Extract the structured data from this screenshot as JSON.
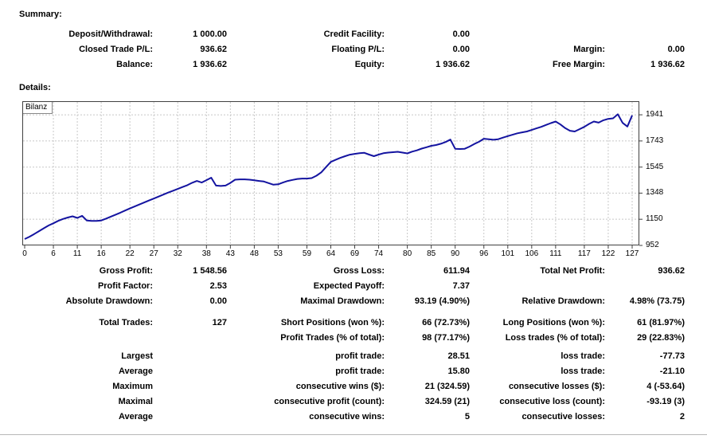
{
  "summary": {
    "title": "Summary:",
    "rows": [
      [
        "Deposit/Withdrawal:",
        "1 000.00",
        "Credit Facility:",
        "0.00",
        "",
        ""
      ],
      [
        "Closed Trade P/L:",
        "936.62",
        "Floating P/L:",
        "0.00",
        "Margin:",
        "0.00"
      ],
      [
        "Balance:",
        "1 936.62",
        "Equity:",
        "1 936.62",
        "Free Margin:",
        "1 936.62"
      ]
    ]
  },
  "details": {
    "title": "Details:"
  },
  "chart_data": {
    "type": "line",
    "title": "Bilanz",
    "xlabel": "",
    "ylabel": "",
    "legend_position": "top-left",
    "grid": true,
    "x_ticks": [
      0,
      6,
      11,
      16,
      22,
      27,
      32,
      38,
      43,
      48,
      53,
      59,
      64,
      69,
      74,
      80,
      85,
      90,
      96,
      101,
      106,
      111,
      117,
      122,
      127
    ],
    "y_ticks": [
      952,
      1150,
      1348,
      1545,
      1743,
      1941
    ],
    "xlim": [
      0,
      128
    ],
    "ylim": [
      952,
      2044
    ],
    "line_color": "#1414a0",
    "grid_color": "#c8c8c8",
    "border_color": "#404040",
    "series": [
      {
        "name": "Bilanz",
        "values": [
          1000,
          1018,
          1038,
          1060,
          1082,
          1103,
          1120,
          1138,
          1152,
          1163,
          1172,
          1160,
          1176,
          1140,
          1137,
          1137,
          1141,
          1155,
          1170,
          1185,
          1200,
          1216,
          1232,
          1247,
          1262,
          1277,
          1292,
          1307,
          1322,
          1337,
          1352,
          1366,
          1380,
          1394,
          1408,
          1426,
          1440,
          1428,
          1446,
          1465,
          1405,
          1402,
          1405,
          1425,
          1450,
          1452,
          1452,
          1450,
          1445,
          1440,
          1436,
          1424,
          1412,
          1415,
          1428,
          1440,
          1448,
          1455,
          1458,
          1458,
          1462,
          1480,
          1505,
          1545,
          1584,
          1600,
          1615,
          1628,
          1639,
          1645,
          1650,
          1653,
          1640,
          1628,
          1640,
          1650,
          1655,
          1658,
          1661,
          1655,
          1649,
          1662,
          1672,
          1685,
          1695,
          1706,
          1712,
          1722,
          1735,
          1753,
          1684,
          1682,
          1684,
          1700,
          1720,
          1737,
          1760,
          1756,
          1752,
          1756,
          1768,
          1780,
          1790,
          1801,
          1808,
          1815,
          1826,
          1838,
          1850,
          1864,
          1878,
          1890,
          1868,
          1840,
          1820,
          1815,
          1832,
          1850,
          1872,
          1890,
          1882,
          1900,
          1910,
          1914,
          1945,
          1880,
          1852,
          1936.62
        ]
      }
    ]
  },
  "stats": {
    "rows": [
      [
        "Gross Profit:",
        "1 548.56",
        "Gross Loss:",
        "611.94",
        "Total Net Profit:",
        "936.62"
      ],
      [
        "Profit Factor:",
        "2.53",
        "Expected Payoff:",
        "7.37",
        "",
        ""
      ],
      [
        "Absolute Drawdown:",
        "0.00",
        "Maximal Drawdown:",
        "93.19 (4.90%)",
        "Relative Drawdown:",
        "4.98% (73.75)"
      ],
      [
        "Total Trades:",
        "127",
        "Short Positions (won %):",
        "66 (72.73%)",
        "Long Positions (won %):",
        "61 (81.97%)"
      ],
      [
        "",
        "",
        "Profit Trades (% of total):",
        "98 (77.17%)",
        "Loss trades (% of total):",
        "29 (22.83%)"
      ],
      [
        "Largest",
        "",
        "profit trade:",
        "28.51",
        "loss trade:",
        "-77.73"
      ],
      [
        "Average",
        "",
        "profit trade:",
        "15.80",
        "loss trade:",
        "-21.10"
      ],
      [
        "Maximum",
        "",
        "consecutive wins ($):",
        "21 (324.59)",
        "consecutive losses ($):",
        "4 (-53.64)"
      ],
      [
        "Maximal",
        "",
        "consecutive profit (count):",
        "324.59 (21)",
        "consecutive loss (count):",
        "-93.19 (3)"
      ],
      [
        "Average",
        "",
        "consecutive wins:",
        "5",
        "consecutive losses:",
        "2"
      ]
    ]
  }
}
